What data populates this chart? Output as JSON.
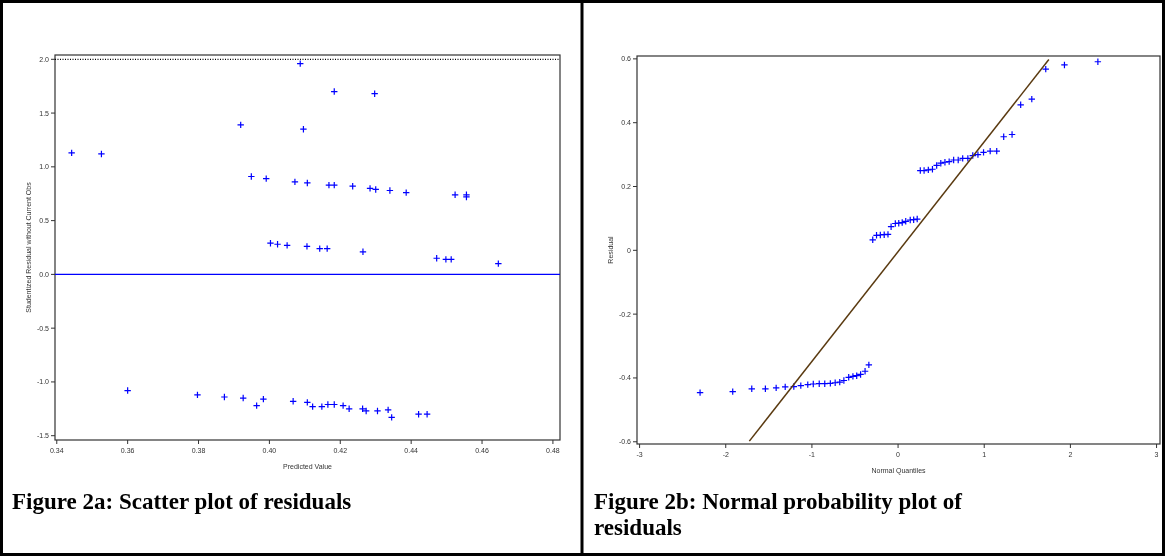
{
  "chart_data": [
    {
      "type": "scatter",
      "title": "Figure 2a: Scatter plot of residuals",
      "xlabel": "Predicted Value",
      "ylabel": "Studentized Residual without Current Obs",
      "xlim": [
        0.3395,
        0.482
      ],
      "ylim": [
        -1.54,
        2.04
      ],
      "xticks": [
        {
          "value": 0.34,
          "label": "0.34"
        },
        {
          "value": 0.36,
          "label": "0.36"
        },
        {
          "value": 0.38,
          "label": "0.38"
        },
        {
          "value": 0.4,
          "label": "0.40"
        },
        {
          "value": 0.42,
          "label": "0.42"
        },
        {
          "value": 0.44,
          "label": "0.44"
        },
        {
          "value": 0.46,
          "label": "0.46"
        },
        {
          "value": 0.48,
          "label": "0.48"
        }
      ],
      "yticks": [
        {
          "value": -1.5,
          "label": "-1.5"
        },
        {
          "value": -1,
          "label": "-1.0"
        },
        {
          "value": -0.5,
          "label": "-0.5"
        },
        {
          "value": 0,
          "label": "0.0"
        },
        {
          "value": 0.5,
          "label": "0.5"
        },
        {
          "value": 1,
          "label": "1.0"
        },
        {
          "value": 1.5,
          "label": "1.5"
        },
        {
          "value": 2,
          "label": "2.0"
        }
      ],
      "marker": "cross",
      "grid": false,
      "ref_lines": [
        {
          "axis": "y",
          "value": 2,
          "color": "#000000",
          "line_style": "dotted"
        },
        {
          "axis": "y",
          "value": 0,
          "color": "#0000ff",
          "line_style": "solid"
        }
      ],
      "series": [
        {
          "color": "#0000ff",
          "x": [
            0.3442,
            0.3526,
            0.3919,
            0.3949,
            0.3991,
            0.4072,
            0.4003,
            0.4023,
            0.405,
            0.36,
            0.3797,
            0.3873,
            0.3926,
            0.3964,
            0.3983,
            0.4067,
            0.4087,
            0.4183,
            0.4297,
            0.4096,
            0.4107,
            0.4168,
            0.4183,
            0.4235,
            0.4284,
            0.43,
            0.434,
            0.4386,
            0.4524,
            0.4556,
            0.4556,
            0.4106,
            0.4142,
            0.4163,
            0.4264,
            0.4472,
            0.4498,
            0.4513,
            0.4646,
            0.4107,
            0.4122,
            0.4148,
            0.4165,
            0.4183,
            0.4208,
            0.4225,
            0.4263,
            0.4273,
            0.4305,
            0.4335,
            0.4345,
            0.4421,
            0.4445
          ],
          "values": [
            1.13,
            1.12,
            1.39,
            0.91,
            0.89,
            0.86,
            0.29,
            0.28,
            0.27,
            -1.08,
            -1.12,
            -1.14,
            -1.15,
            -1.22,
            -1.16,
            -1.18,
            1.96,
            1.7,
            1.68,
            1.35,
            0.85,
            0.83,
            0.83,
            0.82,
            0.8,
            0.79,
            0.78,
            0.76,
            0.74,
            0.74,
            0.72,
            0.26,
            0.24,
            0.24,
            0.21,
            0.15,
            0.14,
            0.14,
            0.1,
            -1.19,
            -1.23,
            -1.23,
            -1.21,
            -1.21,
            -1.22,
            -1.25,
            -1.25,
            -1.27,
            -1.27,
            -1.26,
            -1.33,
            -1.3,
            -1.3
          ]
        }
      ]
    },
    {
      "type": "scatter",
      "title": "Figure 2b: Normal probability plot of residuals",
      "xlabel": "Normal Quantiles",
      "ylabel": "Residual",
      "xlim": [
        -3.03,
        3.04
      ],
      "ylim": [
        -0.607,
        0.609
      ],
      "xticks": [
        -3,
        -2,
        -1,
        0,
        1,
        2,
        3
      ],
      "yticks": [
        -0.6,
        -0.4,
        -0.2,
        0,
        0.2,
        0.4,
        0.6
      ],
      "marker": "cross",
      "grid": false,
      "series": [
        {
          "color": "#0000ff",
          "x": [
            -2.298,
            -1.919,
            -1.698,
            -1.54,
            -1.415,
            -1.31,
            -1.21,
            -1.129,
            -1.048,
            -0.984,
            -0.915,
            -0.851,
            -0.786,
            -0.73,
            -0.677,
            -0.629,
            -0.573,
            -0.524,
            -0.48,
            -0.435,
            -0.383,
            -0.339,
            -0.294,
            -0.25,
            -0.206,
            -0.161,
            -0.117,
            -0.081,
            -0.032,
            0.008,
            0.048,
            0.089,
            0.141,
            0.181,
            0.222,
            0.258,
            0.302,
            0.351,
            0.399,
            0.448,
            0.496,
            0.544,
            0.593,
            0.645,
            0.698,
            0.75,
            0.81,
            0.867,
            0.927,
            0.992,
            1.069,
            1.145,
            1.226,
            1.323,
            1.423,
            1.552,
            1.714,
            1.931,
            2.319
          ],
          "values": [
            -0.446,
            -0.443,
            -0.434,
            -0.434,
            -0.431,
            -0.428,
            -0.427,
            -0.424,
            -0.421,
            -0.419,
            -0.418,
            -0.418,
            -0.417,
            -0.415,
            -0.413,
            -0.408,
            -0.398,
            -0.395,
            -0.393,
            -0.389,
            -0.379,
            -0.359,
            0.033,
            0.047,
            0.048,
            0.049,
            0.05,
            0.074,
            0.084,
            0.085,
            0.087,
            0.091,
            0.095,
            0.096,
            0.098,
            0.25,
            0.25,
            0.252,
            0.254,
            0.266,
            0.273,
            0.276,
            0.278,
            0.283,
            0.283,
            0.288,
            0.288,
            0.297,
            0.3,
            0.307,
            0.311,
            0.311,
            0.356,
            0.363,
            0.456,
            0.474,
            0.568,
            0.581,
            0.591
          ]
        },
        {
          "type": "line",
          "marker": "none",
          "color": "#5a3a10",
          "x": [
            -1.726,
            1.75
          ],
          "values": [
            -0.598,
            0.598
          ]
        }
      ]
    }
  ]
}
